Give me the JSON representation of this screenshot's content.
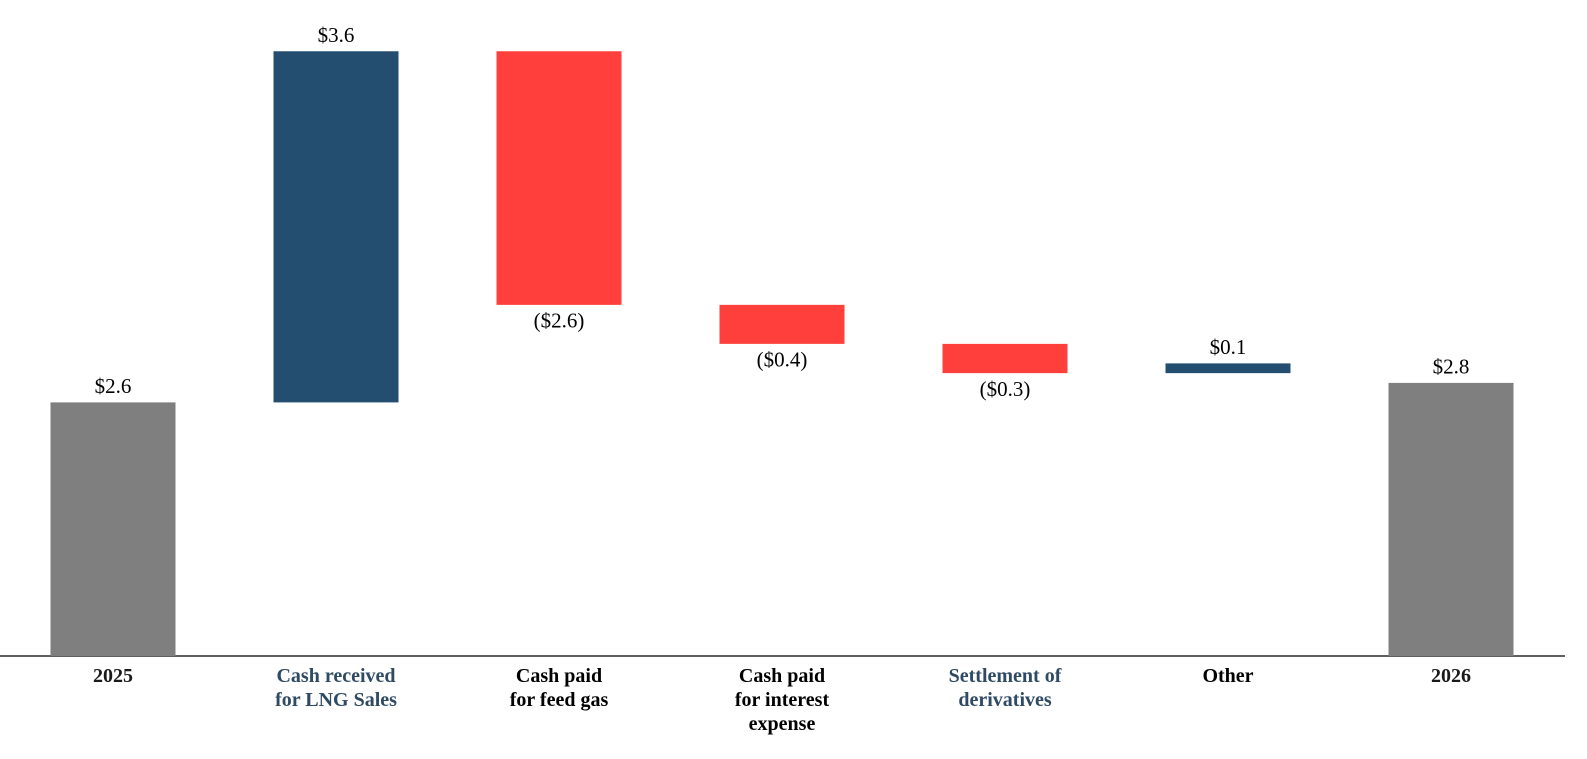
{
  "chart_data": {
    "type": "waterfall",
    "categories": [
      "2025",
      "Cash received\nfor LNG Sales",
      "Cash paid\nfor feed gas",
      "Cash paid\nfor interest\nexpense",
      "Settlement of\nderivatives",
      "Other",
      "2026"
    ],
    "category_colors": [
      "#1a1a1a",
      "#2f4a63",
      "#000000",
      "#000000",
      "#2f4a63",
      "#000000",
      "#1a1a1a"
    ],
    "measure": [
      "absolute",
      "relative",
      "relative",
      "relative",
      "relative",
      "relative",
      "absolute"
    ],
    "values": [
      2.6,
      3.6,
      -2.6,
      -0.4,
      -0.3,
      0.1,
      2.8
    ],
    "value_labels": [
      "$2.6",
      "$3.6",
      "($2.6)",
      "($0.4)",
      "($0.3)",
      "$0.1",
      "$2.8"
    ],
    "colors": [
      "#7f7f7f",
      "#234e70",
      "#ff3f3b",
      "#ff3f3b",
      "#ff3f3b",
      "#234e70",
      "#7f7f7f"
    ],
    "ylim": [
      0,
      6.5
    ]
  }
}
